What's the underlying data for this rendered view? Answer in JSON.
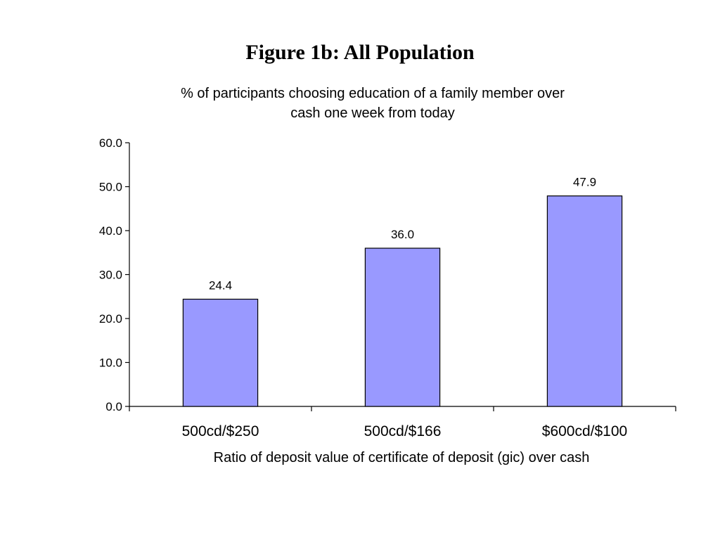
{
  "slide": {
    "title": "Figure 1b: All Population"
  },
  "chart_data": {
    "type": "bar",
    "title": "% of participants choosing education of a family member over cash one week from today",
    "title_lines": [
      "% of participants choosing education of a family member over",
      "cash one week from today"
    ],
    "categories": [
      "500cd/$250",
      "500cd/$166",
      "$600cd/$100"
    ],
    "values": [
      24.4,
      36.0,
      47.9
    ],
    "value_labels": [
      "24.4",
      "36.0",
      "47.9"
    ],
    "xlabel": "Ratio of deposit value of certificate of deposit (gic) over cash",
    "ylabel": "",
    "ylim": [
      0,
      60
    ],
    "yticks": [
      0,
      10,
      20,
      30,
      40,
      50,
      60
    ],
    "ytick_labels": [
      "0.0",
      "10.0",
      "20.0",
      "30.0",
      "40.0",
      "50.0",
      "60.0"
    ],
    "bar_color": "#9999ff",
    "bar_edge_color": "#000000",
    "grid": false,
    "legend": "none"
  }
}
